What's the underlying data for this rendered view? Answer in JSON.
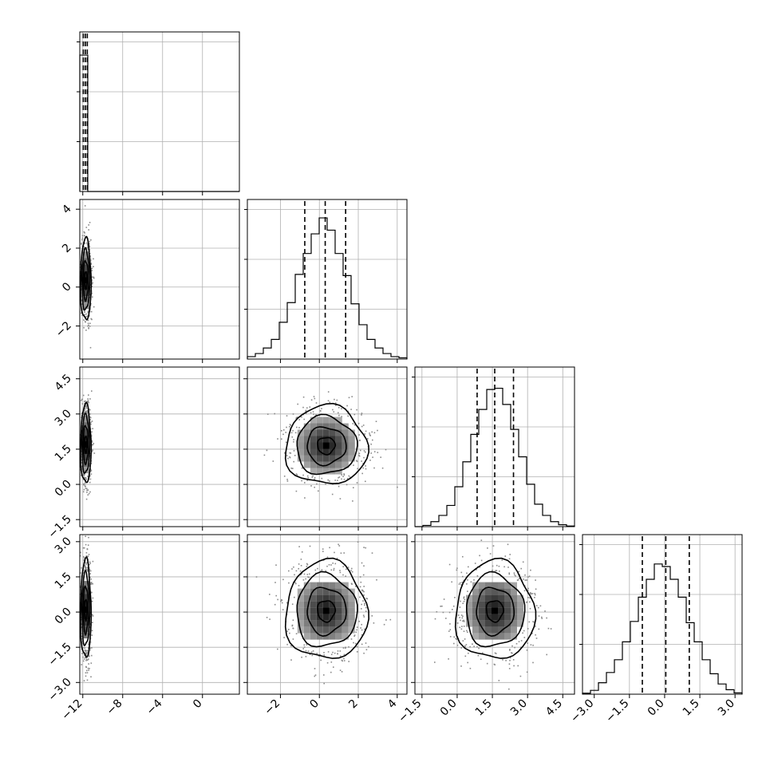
{
  "chart_data": {
    "type": "corner",
    "parameters": [
      {
        "ticks": [
          -12,
          -8,
          -4,
          0
        ],
        "range": [
          -12.3,
          3.7
        ]
      },
      {
        "ticks": [
          -2,
          0,
          2,
          4
        ],
        "range": [
          -3.7,
          4.5
        ]
      },
      {
        "ticks": [
          -1.5,
          0.0,
          1.5,
          3.0,
          4.5
        ],
        "range": [
          -1.8,
          5.0
        ]
      },
      {
        "ticks": [
          -3.0,
          -1.5,
          0.0,
          1.5,
          3.0
        ],
        "range": [
          -3.5,
          3.3
        ]
      }
    ],
    "tick_labels": [
      [
        "−12",
        "−8",
        "−4",
        "0"
      ],
      [
        "−2",
        "0",
        "2",
        "4"
      ],
      [
        "−1.5",
        "0.0",
        "1.5",
        "3.0",
        "4.5"
      ],
      [
        "−3.0",
        "−1.5",
        "0.0",
        "1.5",
        "3.0"
      ]
    ],
    "histograms": [
      {
        "param": 0,
        "bins": [
          -12.3,
          -11.5,
          -10.7,
          -9.9,
          -9.1,
          -8.3,
          -7.5,
          -6.7,
          -5.9,
          -5.1,
          -4.3,
          -3.5,
          -2.7,
          -1.9,
          -1.1,
          -0.3,
          0.5,
          1.3,
          2.1,
          2.9,
          3.7
        ],
        "counts": [
          10000,
          2,
          0,
          0,
          0,
          0,
          0,
          0,
          0,
          0,
          0,
          0,
          0,
          0,
          0,
          0,
          0,
          0,
          0,
          0
        ],
        "ymax": 11700,
        "quantiles": [
          -11.95,
          -11.75,
          -11.55
        ]
      },
      {
        "param": 1,
        "bins": [
          -3.7,
          -3.29,
          -2.88,
          -2.47,
          -2.06,
          -1.65,
          -1.24,
          -0.83,
          -0.42,
          -0.01,
          0.4,
          0.81,
          1.22,
          1.63,
          2.04,
          2.45,
          2.86,
          3.27,
          3.68,
          4.09,
          4.5
        ],
        "counts": [
          20,
          45,
          90,
          160,
          300,
          460,
          690,
          860,
          1020,
          1150,
          1050,
          860,
          680,
          450,
          280,
          160,
          90,
          45,
          20,
          10
        ],
        "ymax": 1300,
        "quantiles": [
          -0.75,
          0.3,
          1.35
        ]
      },
      {
        "param": 2,
        "bins": [
          -1.8,
          -1.46,
          -1.12,
          -0.78,
          -0.44,
          -0.1,
          0.24,
          0.58,
          0.92,
          1.26,
          1.6,
          1.94,
          2.28,
          2.62,
          2.96,
          3.3,
          3.64,
          3.98,
          4.32,
          4.66,
          5.0
        ],
        "counts": [
          0,
          10,
          40,
          90,
          170,
          320,
          520,
          740,
          940,
          1100,
          1110,
          980,
          780,
          560,
          340,
          180,
          90,
          40,
          15,
          5
        ],
        "ymax": 1280,
        "quantiles": [
          0.85,
          1.6,
          2.4
        ]
      },
      {
        "param": 3,
        "bins": [
          -3.5,
          -3.16,
          -2.82,
          -2.48,
          -2.14,
          -1.8,
          -1.46,
          -1.12,
          -0.78,
          -0.44,
          -0.1,
          0.24,
          0.58,
          0.92,
          1.26,
          1.6,
          1.94,
          2.28,
          2.62,
          2.96,
          3.3
        ],
        "counts": [
          8,
          30,
          90,
          170,
          270,
          410,
          570,
          760,
          900,
          1020,
          1000,
          900,
          760,
          560,
          410,
          270,
          160,
          80,
          35,
          10
        ],
        "ymax": 1250,
        "quantiles": [
          -0.95,
          0.05,
          1.05
        ]
      }
    ],
    "pairs": [
      {
        "x_param": 0,
        "y_param": 1,
        "center": [
          -11.7,
          0.35
        ],
        "sigma": [
          0.25,
          1.0
        ]
      },
      {
        "x_param": 0,
        "y_param": 2,
        "center": [
          -11.7,
          1.7
        ],
        "sigma": [
          0.25,
          0.8
        ]
      },
      {
        "x_param": 1,
        "y_param": 2,
        "center": [
          0.35,
          1.65
        ],
        "sigma": [
          1.0,
          0.8
        ]
      },
      {
        "x_param": 0,
        "y_param": 3,
        "center": [
          -11.7,
          0.1
        ],
        "sigma": [
          0.25,
          1.0
        ]
      },
      {
        "x_param": 1,
        "y_param": 3,
        "center": [
          0.35,
          0.05
        ],
        "sigma": [
          1.0,
          1.0
        ]
      },
      {
        "x_param": 2,
        "y_param": 3,
        "center": [
          1.6,
          0.05
        ],
        "sigma": [
          0.8,
          1.0
        ]
      }
    ]
  }
}
